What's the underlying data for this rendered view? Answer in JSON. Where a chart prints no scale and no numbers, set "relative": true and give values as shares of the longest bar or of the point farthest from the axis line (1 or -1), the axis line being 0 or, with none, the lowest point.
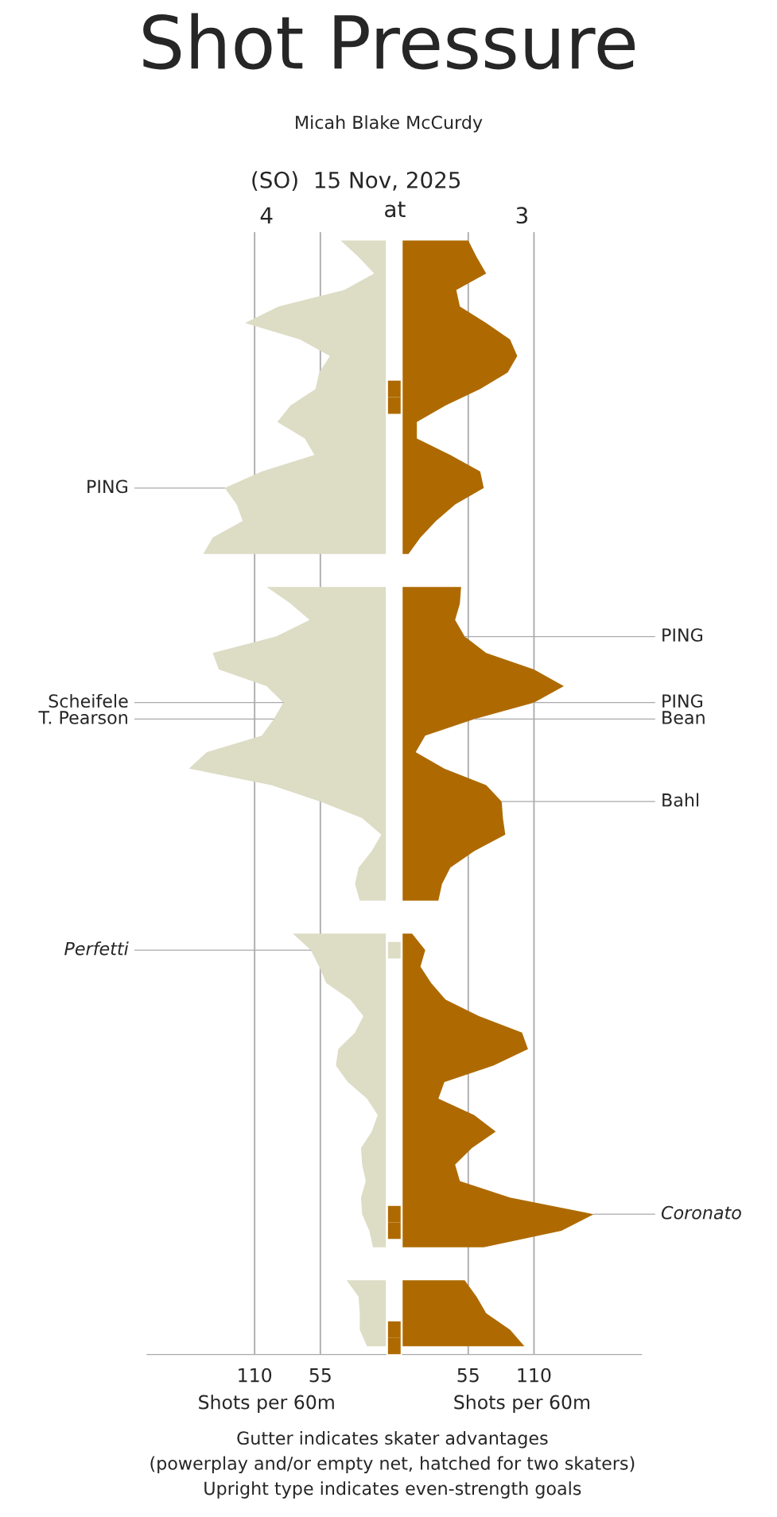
{
  "chart_data": [
    {
      "type": "area",
      "orientation": "horizontal",
      "title": "4",
      "xlabel": "Shots per 60m",
      "xlim": [
        200,
        0
      ],
      "xticks": [
        110,
        55
      ],
      "grid": "x",
      "legend": false,
      "categories": [
        null,
        null,
        null,
        null,
        null,
        null,
        null,
        null,
        null,
        null,
        null,
        null,
        null,
        null,
        null,
        null,
        null,
        null,
        null,
        null,
        null,
        null,
        null,
        null,
        null,
        null,
        null,
        null,
        null,
        null,
        null,
        null,
        null,
        null,
        null,
        null,
        null,
        null,
        null,
        null,
        null,
        null,
        null,
        null,
        null,
        null,
        null,
        null,
        null,
        null,
        null,
        null,
        null,
        null,
        null,
        null,
        null,
        null,
        null,
        null,
        null,
        null,
        null,
        null,
        null,
        null,
        null,
        null
      ],
      "series": [
        {
          "color": "#dddcc5",
          "values": [
            38,
            23,
            10,
            35,
            90,
            118,
            72,
            47,
            56,
            59,
            80,
            91,
            68,
            60,
            104,
            135,
            125,
            120,
            145,
            153,
            null,
            100,
            80,
            64,
            92,
            145,
            140,
            100,
            86,
            94,
            104,
            150,
            165,
            96,
            55,
            20,
            4,
            12,
            23,
            26,
            22,
            null,
            78,
            63,
            56,
            50,
            30,
            19,
            26,
            40,
            42,
            32,
            16,
            7,
            12,
            21,
            20,
            17,
            21,
            20,
            14,
            11,
            null,
            33,
            23,
            22,
            22,
            16
          ],
          "value_labels": [
            null,
            null,
            null,
            null,
            null,
            null,
            null,
            null,
            null,
            null,
            null,
            null,
            null,
            null,
            null,
            "PING",
            null,
            null,
            null,
            null,
            null,
            null,
            null,
            null,
            null,
            null,
            null,
            null,
            "Scheifele",
            "T. Pearson",
            null,
            null,
            null,
            null,
            null,
            null,
            null,
            null,
            null,
            null,
            null,
            null,
            null,
            "Perfetti",
            null,
            null,
            null,
            null,
            null,
            null,
            null,
            null,
            null,
            null,
            null,
            null,
            null,
            null,
            null,
            null,
            null,
            null,
            null,
            null,
            null,
            null,
            null,
            null
          ]
        }
      ]
    },
    {
      "type": "bar",
      "orientation": "horizontal",
      "relative": true,
      "title": "Shot Pressure",
      "subtitle": "Micah Blake McCurdy",
      "categories": [
        null,
        null,
        null,
        null,
        null,
        null,
        null,
        null,
        null,
        null,
        null,
        null,
        null,
        null,
        null,
        null,
        null,
        null,
        null,
        null,
        null,
        null,
        null,
        null,
        null,
        null,
        null,
        null,
        null,
        null,
        null,
        null,
        null,
        null,
        null,
        null,
        null,
        null,
        null,
        null,
        null,
        null,
        null,
        null,
        null,
        null,
        null,
        null,
        null,
        null,
        null,
        null,
        null,
        null,
        null,
        null,
        null,
        null,
        null,
        null,
        null,
        null,
        null,
        null,
        null,
        null,
        null,
        null
      ],
      "values": [
        0,
        0,
        0,
        0,
        0,
        0,
        0,
        0,
        0,
        1,
        1,
        0,
        0,
        0,
        0,
        0,
        0,
        0,
        0,
        0,
        0,
        0,
        0,
        0,
        0,
        0,
        0,
        0,
        0,
        0,
        0,
        0,
        0,
        0,
        0,
        0,
        0,
        0,
        0,
        0,
        0,
        0,
        0,
        1,
        0,
        0,
        0,
        0,
        0,
        0,
        0,
        0,
        0,
        0,
        0,
        0,
        0,
        0,
        0,
        1,
        1,
        0,
        0,
        0,
        0,
        0,
        1,
        1
      ],
      "colors": [
        "#ffffff",
        "#ffffff",
        "#ffffff",
        "#ffffff",
        "#ffffff",
        "#ffffff",
        "#ffffff",
        "#ffffff",
        "#ffffff",
        "#ae6a00",
        "#ae6a00",
        "#ffffff",
        "#ffffff",
        "#ffffff",
        "#ffffff",
        "#ffffff",
        "#ffffff",
        "#ffffff",
        "#ffffff",
        "#ffffff",
        "#ffffff",
        "#ffffff",
        "#ffffff",
        "#ffffff",
        "#ffffff",
        "#ffffff",
        "#ffffff",
        "#ffffff",
        "#ffffff",
        "#ffffff",
        "#ffffff",
        "#ffffff",
        "#ffffff",
        "#ffffff",
        "#ffffff",
        "#ffffff",
        "#ffffff",
        "#ffffff",
        "#ffffff",
        "#ffffff",
        "#ffffff",
        "#ffffff",
        "#ffffff",
        "#dddcc5",
        "#ffffff",
        "#ffffff",
        "#ffffff",
        "#ffffff",
        "#ffffff",
        "#ffffff",
        "#ffffff",
        "#ffffff",
        "#ffffff",
        "#ffffff",
        "#ffffff",
        "#ffffff",
        "#ffffff",
        "#ffffff",
        "#ffffff",
        "#ae6a00",
        "#ae6a00",
        "#ffffff",
        "#ffffff",
        "#ffffff",
        "#ffffff",
        "#ffffff",
        "#ae6a00",
        "#ae6a00"
      ],
      "annotations": [
        "(SO)  15 Nov, 2025",
        "at",
        "Gutter indicates skater advantages",
        "(powerplay and/or empty net, hatched for two skaters)",
        "Upright type indicates even-strength goals"
      ]
    },
    {
      "type": "area",
      "orientation": "horizontal",
      "title": "3",
      "xlabel": "Shots per 60m",
      "xlim": [
        0,
        200
      ],
      "xticks": [
        55,
        110
      ],
      "grid": "x",
      "legend": false,
      "categories": [
        null,
        null,
        null,
        null,
        null,
        null,
        null,
        null,
        null,
        null,
        null,
        null,
        null,
        null,
        null,
        null,
        null,
        null,
        null,
        null,
        null,
        null,
        null,
        null,
        null,
        null,
        null,
        null,
        null,
        null,
        null,
        null,
        null,
        null,
        null,
        null,
        null,
        null,
        null,
        null,
        null,
        null,
        null,
        null,
        null,
        null,
        null,
        null,
        null,
        null,
        null,
        null,
        null,
        null,
        null,
        null,
        null,
        null,
        null,
        null,
        null,
        null,
        null,
        null,
        null,
        null,
        null,
        null
      ],
      "series": [
        {
          "color": "#ae6a00",
          "values": [
            55,
            62,
            70,
            45,
            48,
            70,
            90,
            96,
            88,
            65,
            36,
            12,
            12,
            40,
            65,
            68,
            44,
            28,
            15,
            5,
            null,
            49,
            48,
            44,
            52,
            70,
            110,
            135,
            110,
            60,
            19,
            11,
            35,
            70,
            83,
            84,
            86,
            60,
            40,
            33,
            30,
            null,
            8,
            19,
            15,
            24,
            36,
            64,
            100,
            105,
            76,
            35,
            30,
            60,
            78,
            58,
            44,
            48,
            90,
            160,
            133,
            68,
            null,
            52,
            62,
            70,
            90,
            102
          ],
          "value_labels": [
            null,
            null,
            null,
            null,
            null,
            null,
            null,
            null,
            null,
            null,
            null,
            null,
            null,
            null,
            null,
            null,
            null,
            null,
            null,
            null,
            null,
            null,
            null,
            null,
            "PING",
            null,
            null,
            null,
            "PING",
            "Bean",
            null,
            null,
            null,
            null,
            "Bahl",
            null,
            null,
            null,
            null,
            null,
            null,
            null,
            null,
            null,
            null,
            null,
            null,
            null,
            null,
            null,
            null,
            null,
            null,
            null,
            null,
            null,
            null,
            null,
            null,
            "Coronato",
            null,
            null,
            null,
            null,
            null,
            null,
            null,
            null
          ]
        }
      ]
    }
  ]
}
